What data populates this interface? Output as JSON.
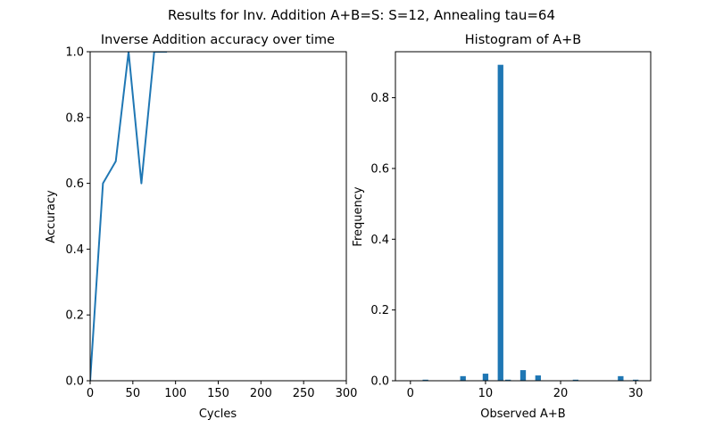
{
  "figure": {
    "suptitle": "Results for Inv. Addition A+B=S: S=12, Annealing tau=64"
  },
  "colors": {
    "series": "#1f77b4",
    "axes": "#000000",
    "background": "#ffffff"
  },
  "chart_data": [
    {
      "type": "line",
      "title": "Inverse Addition accuracy over time",
      "xlabel": "Cycles",
      "ylabel": "Accuracy",
      "xlim": [
        0,
        300
      ],
      "ylim": [
        0,
        1
      ],
      "xticks": [
        0,
        50,
        100,
        150,
        200,
        250,
        300
      ],
      "yticks": [
        0.0,
        0.2,
        0.4,
        0.6,
        0.8,
        1.0
      ],
      "xtick_labels": [
        "0",
        "50",
        "100",
        "150",
        "200",
        "250",
        "300"
      ],
      "ytick_labels": [
        "0.0",
        "0.2",
        "0.4",
        "0.6",
        "0.8",
        "1.0"
      ],
      "grid": false,
      "series": [
        {
          "x": [
            0,
            15,
            30,
            45,
            60,
            75,
            90
          ],
          "y": [
            0.0,
            0.6,
            0.667,
            1.0,
            0.6,
            1.0,
            1.0
          ]
        }
      ]
    },
    {
      "type": "bar",
      "title": "Histogram of A+B",
      "xlabel": "Observed A+B",
      "ylabel": "Frequency",
      "xlim": [
        -2,
        32
      ],
      "ylim": [
        0,
        0.93
      ],
      "xticks": [
        0,
        10,
        20,
        30
      ],
      "yticks": [
        0.0,
        0.2,
        0.4,
        0.6,
        0.8
      ],
      "xtick_labels": [
        "0",
        "10",
        "20",
        "30"
      ],
      "ytick_labels": [
        "0.0",
        "0.2",
        "0.4",
        "0.6",
        "0.8"
      ],
      "grid": false,
      "bin_width": 0.75,
      "categories": [
        2,
        7,
        10,
        12,
        13,
        15,
        17,
        22,
        28,
        30
      ],
      "values": [
        0.003,
        0.013,
        0.02,
        0.893,
        0.003,
        0.03,
        0.015,
        0.003,
        0.013,
        0.003
      ]
    }
  ]
}
